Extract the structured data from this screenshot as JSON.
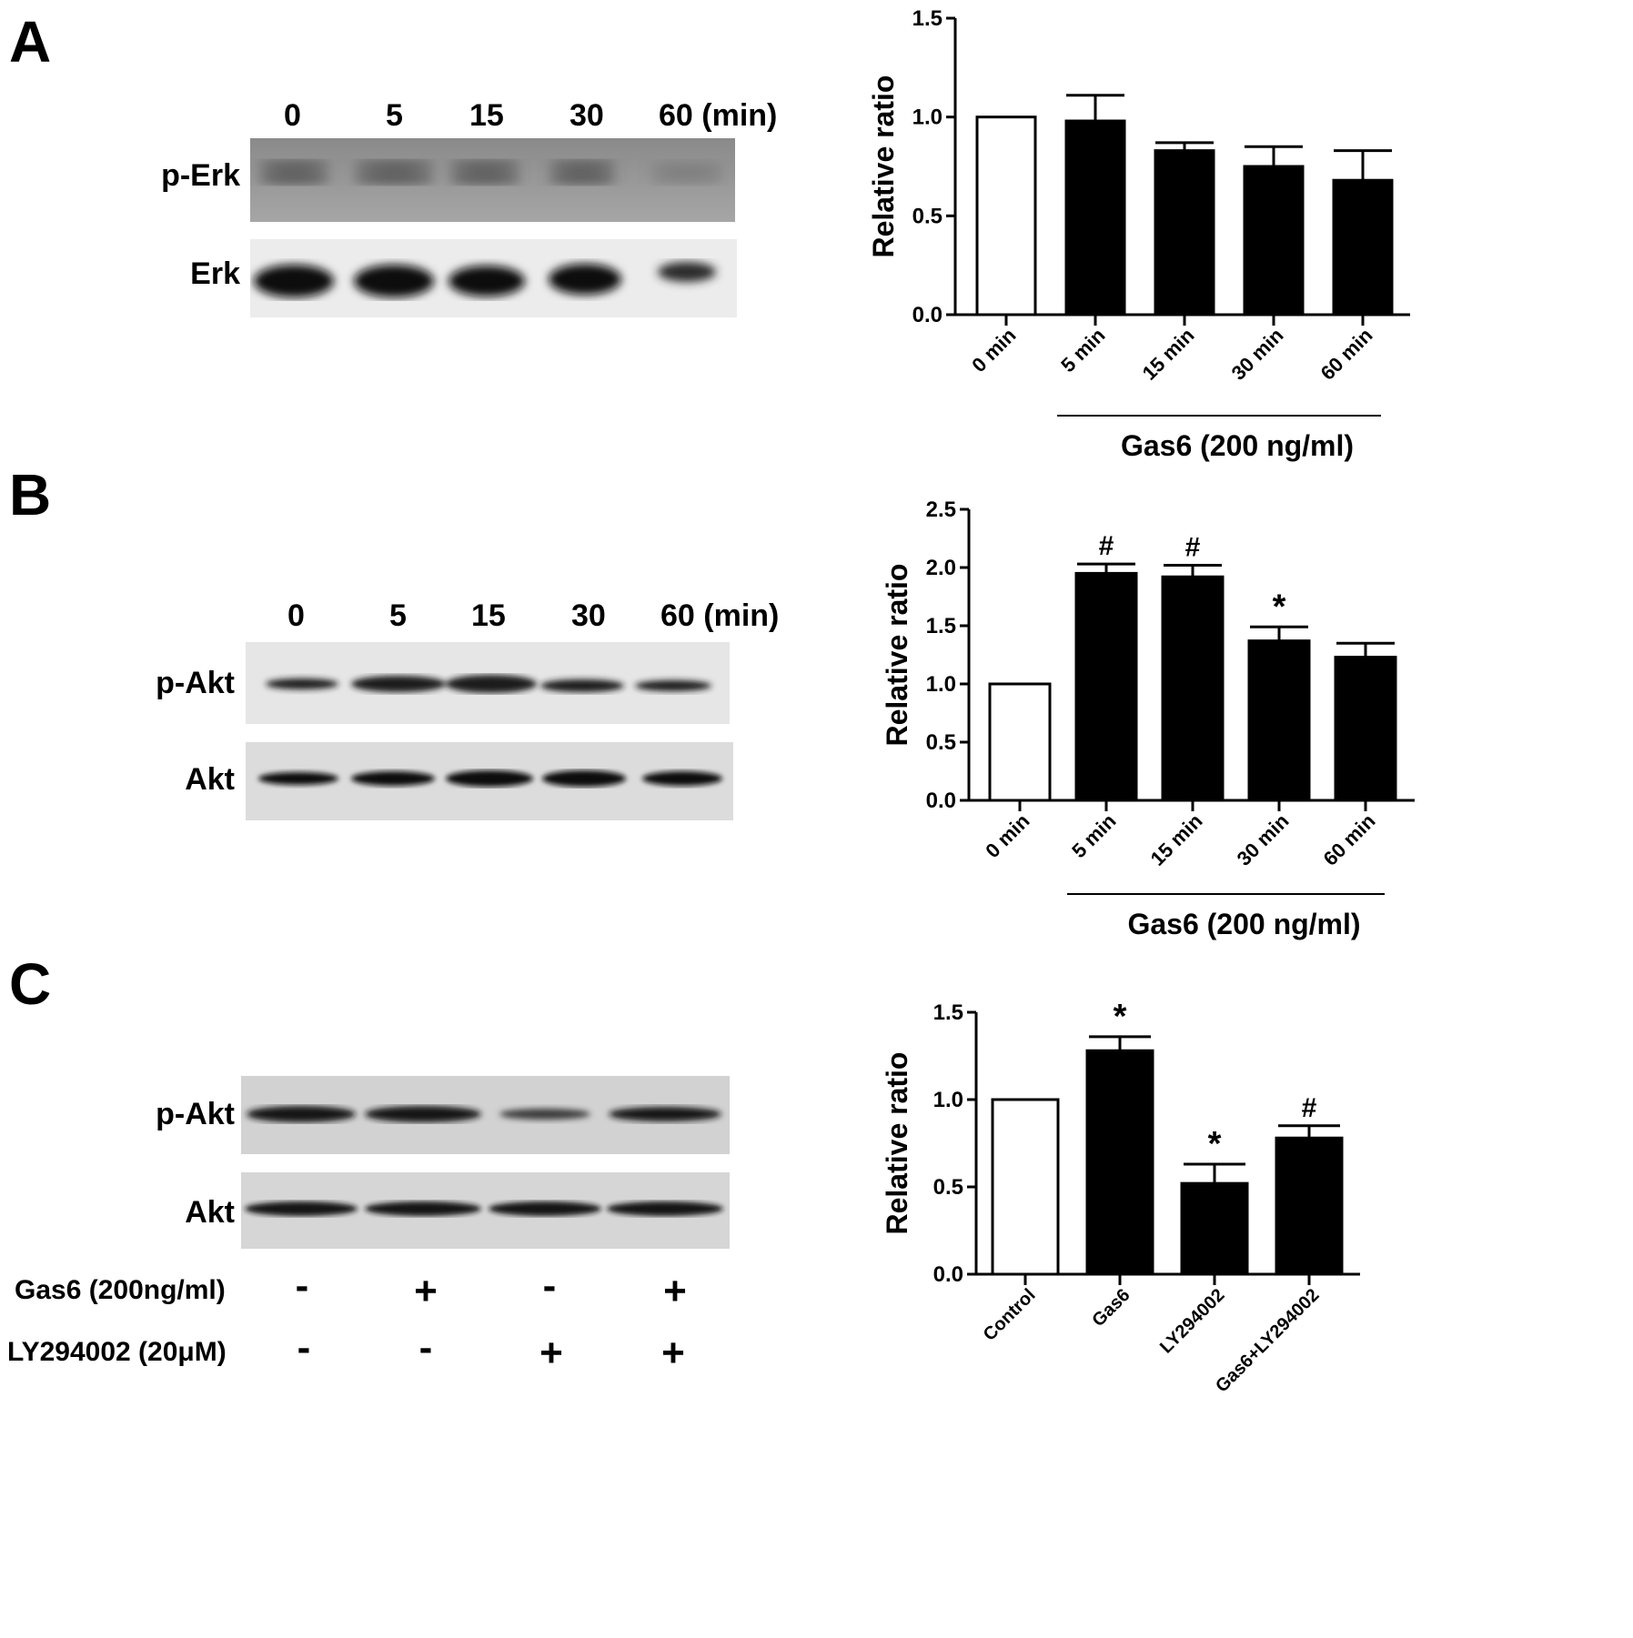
{
  "panels": {
    "A": {
      "letter": "A",
      "lanes": [
        "0",
        "5",
        "15",
        "30",
        "60 (min)"
      ],
      "rows": [
        "p-Erk",
        "Erk"
      ],
      "chart_data": {
        "type": "bar",
        "categories": [
          "0 min",
          "5 min",
          "15 min",
          "30 min",
          "60 min"
        ],
        "values": [
          1.0,
          0.98,
          0.83,
          0.75,
          0.68
        ],
        "errors": [
          0,
          0.13,
          0.04,
          0.1,
          0.15
        ],
        "fills": [
          "#ffffff",
          "#000000",
          "#000000",
          "#000000",
          "#000000"
        ],
        "annotations": [
          "",
          "",
          "",
          "",
          ""
        ],
        "ylabel": "Relative ratio",
        "ylim": [
          0,
          1.5
        ],
        "yticks": [
          "0.0",
          "0.5",
          "1.0",
          "1.5"
        ],
        "group_label": "Gas6 (200 ng/ml)"
      }
    },
    "B": {
      "letter": "B",
      "lanes": [
        "0",
        "5",
        "15",
        "30",
        "60 (min)"
      ],
      "rows": [
        "p-Akt",
        "Akt"
      ],
      "chart_data": {
        "type": "bar",
        "categories": [
          "0 min",
          "5 min",
          "15 min",
          "30 min",
          "60 min"
        ],
        "values": [
          1.0,
          1.95,
          1.92,
          1.37,
          1.23
        ],
        "errors": [
          0,
          0.08,
          0.1,
          0.12,
          0.12
        ],
        "fills": [
          "#ffffff",
          "#000000",
          "#000000",
          "#000000",
          "#000000"
        ],
        "annotations": [
          "",
          "#",
          "#",
          "*",
          ""
        ],
        "ylabel": "Relative ratio",
        "ylim": [
          0,
          2.5
        ],
        "yticks": [
          "0.0",
          "0.5",
          "1.0",
          "1.5",
          "2.0",
          "2.5"
        ],
        "group_label": "Gas6 (200 ng/ml)"
      }
    },
    "C": {
      "letter": "C",
      "rows": [
        "p-Akt",
        "Akt"
      ],
      "treatments": [
        {
          "label": "Gas6 (200ng/ml)",
          "signs": [
            "-",
            "+",
            "-",
            "+"
          ]
        },
        {
          "label": "LY294002 (20μM)",
          "signs": [
            "-",
            "-",
            "+",
            "+"
          ]
        }
      ],
      "chart_data": {
        "type": "bar",
        "categories": [
          "Control",
          "Gas6",
          "LY294002",
          "Gas6+LY294002"
        ],
        "values": [
          1.0,
          1.28,
          0.52,
          0.78
        ],
        "errors": [
          0,
          0.08,
          0.11,
          0.07
        ],
        "fills": [
          "#ffffff",
          "#000000",
          "#000000",
          "#000000"
        ],
        "annotations": [
          "",
          "*",
          "*",
          "#"
        ],
        "ylabel": "Relative ratio",
        "ylim": [
          0,
          1.5
        ],
        "yticks": [
          "0.0",
          "0.5",
          "1.0",
          "1.5"
        ],
        "group_label": ""
      }
    }
  }
}
